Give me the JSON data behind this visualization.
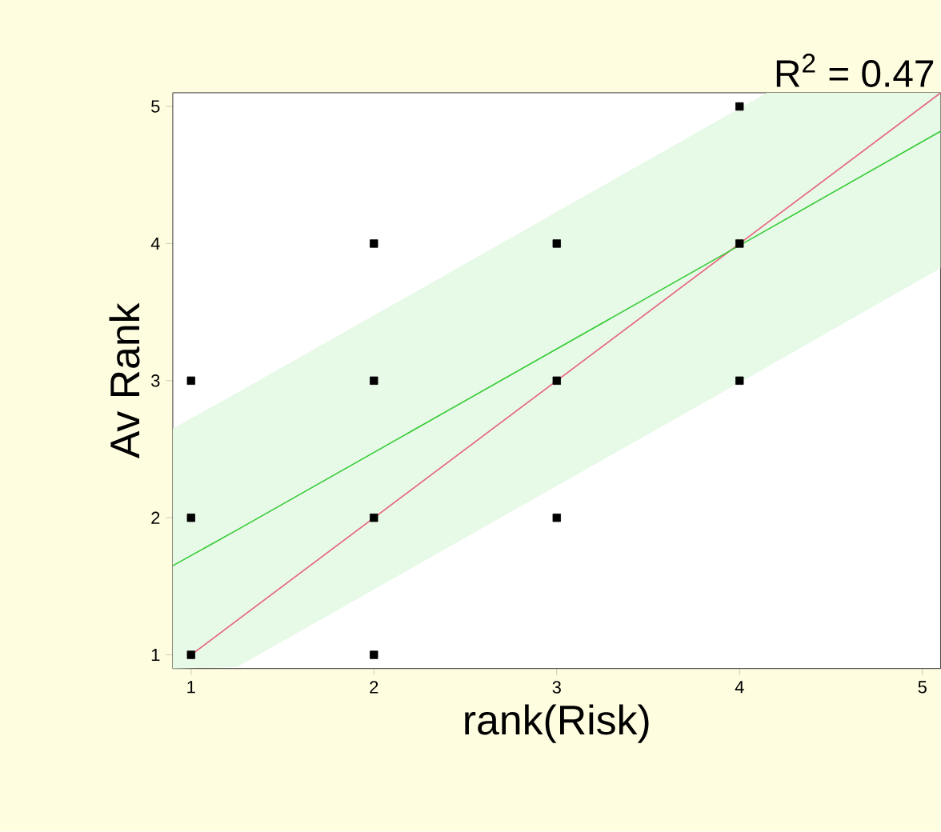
{
  "chart_data": {
    "type": "scatter",
    "title": "R$^{2}$ = 0.47",
    "xlabel": "rank(Risk)",
    "ylabel": "Av Rank",
    "xlim": [
      0.9,
      5.1
    ],
    "ylim": [
      0.9,
      5.1
    ],
    "xticks": [
      1,
      2,
      3,
      4,
      5
    ],
    "yticks": [
      1,
      2,
      3,
      4,
      5
    ],
    "marker": "square",
    "series": [
      {
        "type": "line",
        "marker": "none",
        "color": "#e8607a",
        "x": [
          1,
          5.1
        ],
        "values": [
          1,
          5.1
        ]
      },
      {
        "type": "line",
        "marker": "none",
        "color": "#33cc33",
        "x": [
          0.9,
          1.25,
          4.15,
          5.1
        ],
        "values": [
          1.65,
          1.91,
          4.1,
          4.82
        ],
        "lower": [
          0.9,
          0.91,
          3.1,
          3.82
        ],
        "upper": [
          2.65,
          2.91,
          5.1,
          5.1
        ]
      },
      {
        "color": "#000000",
        "x": [
          1,
          1,
          1,
          2,
          2,
          2,
          2,
          3,
          3,
          3,
          4,
          4,
          4
        ],
        "values": [
          1,
          2,
          3,
          1,
          2,
          3,
          4,
          2,
          3,
          4,
          3,
          4,
          5
        ]
      }
    ]
  }
}
